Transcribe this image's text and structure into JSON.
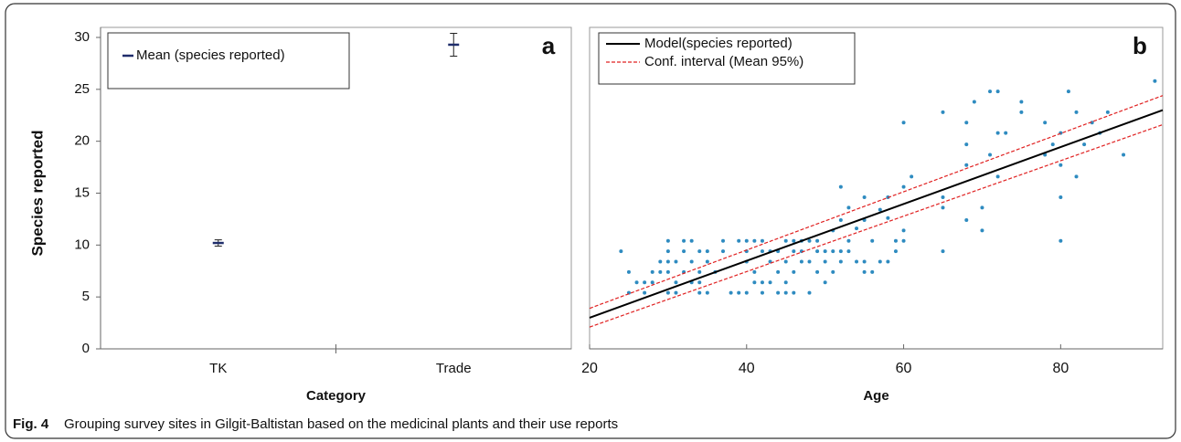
{
  "chart_data": [
    {
      "type": "errorbar",
      "panel_label": "a",
      "x_label": "Category",
      "y_label": "Species reported",
      "categories": [
        "TK",
        "Trade"
      ],
      "series": [
        {
          "name": "Mean (species reported)",
          "color": "#1f2d6b",
          "values": [
            10.2,
            29.3
          ],
          "errors": [
            0.3,
            1.1
          ]
        }
      ],
      "ylim": [
        0,
        30
      ],
      "yticks": [
        0,
        5,
        10,
        15,
        20,
        25,
        30
      ]
    },
    {
      "type": "scatter",
      "panel_label": "b",
      "x_label": "Age",
      "xlim": [
        20,
        93
      ],
      "xticks": [
        20,
        40,
        60,
        80
      ],
      "ylim": [
        0,
        30
      ],
      "points": {
        "color": "#2e8bc0",
        "x": [
          24,
          25,
          25,
          26,
          27,
          27,
          28,
          28,
          29,
          29,
          30,
          30,
          30,
          30,
          30,
          31,
          31,
          31,
          32,
          32,
          32,
          33,
          33,
          33,
          34,
          34,
          34,
          34,
          35,
          35,
          35,
          36,
          37,
          37,
          38,
          39,
          39,
          40,
          40,
          40,
          40,
          41,
          41,
          41,
          42,
          42,
          42,
          42,
          43,
          43,
          43,
          44,
          44,
          44,
          45,
          45,
          45,
          45,
          46,
          46,
          46,
          46,
          47,
          47,
          47,
          48,
          48,
          48,
          49,
          49,
          49,
          50,
          50,
          50,
          51,
          51,
          51,
          52,
          52,
          52,
          52,
          53,
          53,
          53,
          54,
          54,
          55,
          55,
          55,
          55,
          56,
          56,
          57,
          57,
          58,
          58,
          58,
          59,
          59,
          60,
          60,
          60,
          60,
          61,
          65,
          65,
          65,
          65,
          68,
          68,
          68,
          68,
          69,
          70,
          70,
          71,
          71,
          72,
          72,
          72,
          73,
          75,
          75,
          78,
          78,
          79,
          80,
          80,
          80,
          80,
          81,
          82,
          82,
          83,
          84,
          85,
          86,
          88,
          92
        ],
        "values": [
          9.4,
          7.4,
          5.4,
          6.4,
          5.4,
          6.4,
          7.4,
          6.4,
          7.4,
          8.4,
          10.4,
          9.4,
          8.4,
          7.4,
          5.4,
          6.4,
          5.4,
          8.4,
          10.4,
          9.4,
          7.4,
          10.4,
          8.4,
          6.4,
          5.4,
          6.4,
          7.4,
          9.4,
          5.4,
          8.4,
          9.4,
          7.4,
          10.4,
          9.4,
          5.4,
          5.4,
          10.4,
          10.4,
          9.4,
          8.4,
          5.4,
          10.4,
          7.4,
          6.4,
          10.4,
          9.4,
          5.4,
          6.4,
          8.4,
          9.4,
          6.4,
          9.4,
          7.4,
          5.4,
          10.4,
          8.4,
          6.4,
          5.4,
          10.4,
          9.4,
          7.4,
          5.4,
          10.4,
          8.4,
          9.4,
          8.4,
          10.4,
          5.4,
          9.4,
          7.4,
          10.4,
          9.4,
          8.4,
          6.4,
          11.4,
          7.4,
          9.4,
          12.4,
          9.4,
          8.4,
          15.6,
          9.4,
          10.4,
          13.6,
          11.6,
          8.4,
          14.6,
          12.4,
          7.4,
          8.4,
          7.4,
          10.4,
          13.4,
          8.4,
          14.6,
          12.6,
          8.4,
          9.4,
          10.4,
          21.8,
          15.6,
          11.4,
          10.4,
          16.6,
          22.8,
          14.6,
          13.6,
          9.4,
          21.8,
          19.7,
          17.7,
          12.4,
          23.8,
          13.6,
          11.4,
          24.8,
          18.7,
          24.8,
          20.8,
          16.6,
          20.8,
          23.8,
          22.8,
          21.8,
          18.7,
          19.7,
          20.8,
          17.7,
          14.6,
          10.4,
          24.8,
          22.8,
          16.6,
          19.7,
          21.8,
          20.8,
          22.8,
          18.7,
          25.8
        ]
      },
      "series": [
        {
          "name": "Model(species reported)",
          "color": "#000000",
          "x": [
            20,
            93
          ],
          "values": [
            3.0,
            23.0
          ]
        },
        {
          "name": "Conf. interval (Mean 95%)",
          "color": "#e02020",
          "dashed": true,
          "x": [
            20,
            93
          ],
          "values": [
            3.9,
            24.4
          ]
        },
        {
          "color": "#e02020",
          "dashed": true,
          "x": [
            20,
            93
          ],
          "values": [
            2.1,
            21.6
          ]
        }
      ]
    }
  ],
  "caption": {
    "label": "Fig. 4",
    "text": "Grouping survey sites in Gilgit-Baltistan based on the medicinal plants and their use reports"
  }
}
